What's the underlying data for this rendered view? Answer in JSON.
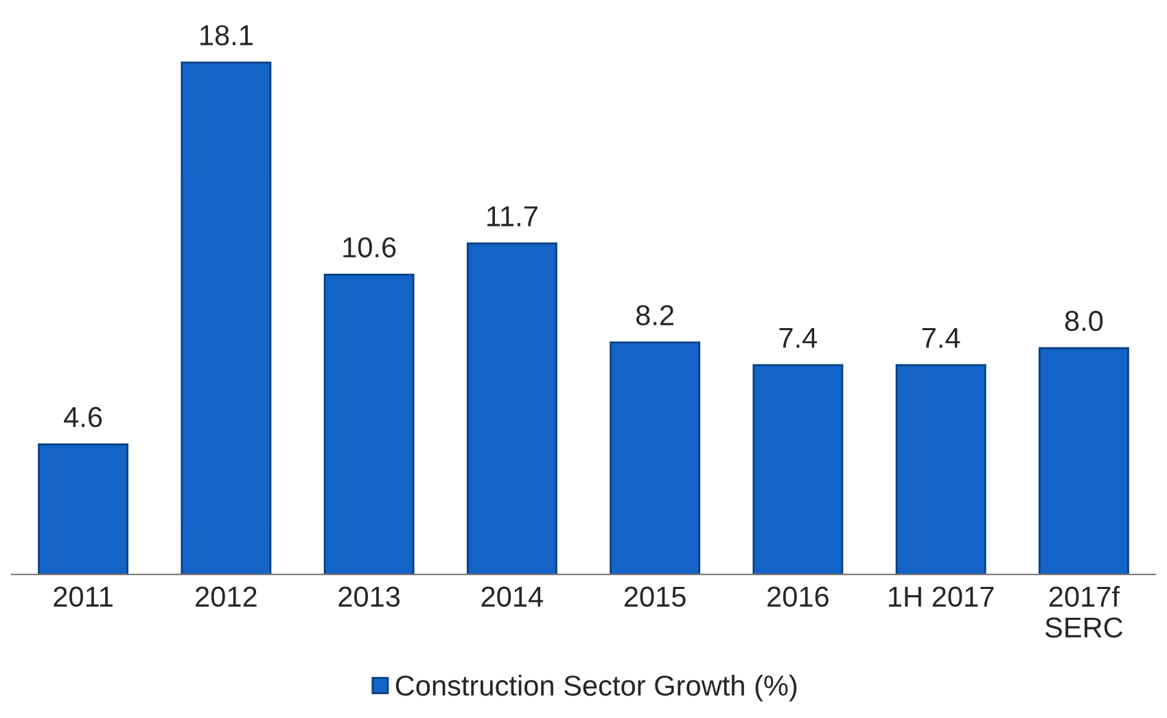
{
  "chart_data": {
    "type": "bar",
    "categories": [
      "2011",
      "2012",
      "2013",
      "2014",
      "2015",
      "2016",
      "1H 2017",
      "2017f\nSERC"
    ],
    "series": [
      {
        "name": "Construction Sector Growth (%)",
        "color": "#1464c8",
        "values": [
          4.6,
          18.1,
          10.6,
          11.7,
          8.2,
          7.4,
          7.4,
          8.0
        ],
        "value_labels": [
          "4.6",
          "18.1",
          "10.6",
          "11.7",
          "8.2",
          "7.4",
          "7.4",
          "8.0"
        ]
      }
    ],
    "legend": "bottom"
  }
}
